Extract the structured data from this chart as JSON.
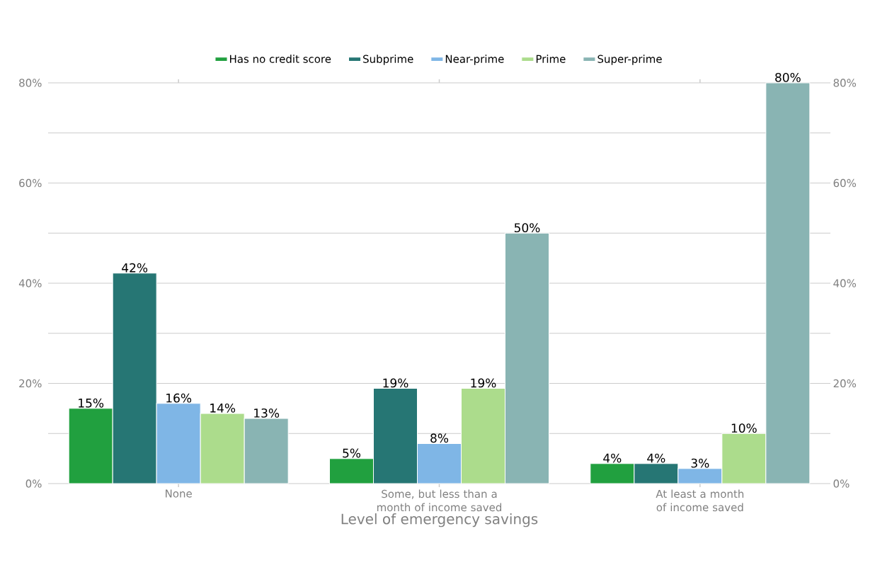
{
  "chart_data": {
    "type": "bar",
    "xlabel": "Level of emergency savings",
    "categories": [
      "None",
      "Some, but less than a month of income saved",
      "At least a month of income saved"
    ],
    "series": [
      {
        "name": "Has no credit score",
        "color": "#21a03f",
        "values": [
          15,
          5,
          4
        ],
        "value_labels": [
          "15%",
          "5%",
          "4%"
        ]
      },
      {
        "name": "Subprime",
        "color": "#267674",
        "values": [
          42,
          19,
          4
        ],
        "value_labels": [
          "42%",
          "19%",
          "4%"
        ]
      },
      {
        "name": "Near-prime",
        "color": "#7fb6e6",
        "values": [
          16,
          8,
          3
        ],
        "value_labels": [
          "16%",
          "8%",
          "3%"
        ]
      },
      {
        "name": "Prime",
        "color": "#acdc8c",
        "values": [
          14,
          19,
          10
        ],
        "value_labels": [
          "14%",
          "19%",
          "10%"
        ]
      },
      {
        "name": "Super-prime",
        "color": "#89b4b3",
        "values": [
          13,
          50,
          80
        ],
        "value_labels": [
          "13%",
          "50%",
          "80%"
        ]
      }
    ],
    "ylim": [
      0,
      80
    ],
    "yticks": [
      {
        "value": 0,
        "label": "0%"
      },
      {
        "value": 10,
        "label": null
      },
      {
        "value": 20,
        "label": "20%"
      },
      {
        "value": 30,
        "label": null
      },
      {
        "value": 40,
        "label": "40%"
      },
      {
        "value": 50,
        "label": null
      },
      {
        "value": 60,
        "label": "60%"
      },
      {
        "value": 70,
        "label": null
      },
      {
        "value": 80,
        "label": "80%"
      }
    ],
    "y2lim": [
      0,
      80
    ],
    "y2ticks": [
      {
        "value": 0,
        "label": "0%"
      },
      {
        "value": 20,
        "label": "20%"
      },
      {
        "value": 40,
        "label": "40%"
      },
      {
        "value": 60,
        "label": "60%"
      },
      {
        "value": 80,
        "label": "80%"
      }
    ],
    "grid": "y",
    "legend": "top"
  }
}
